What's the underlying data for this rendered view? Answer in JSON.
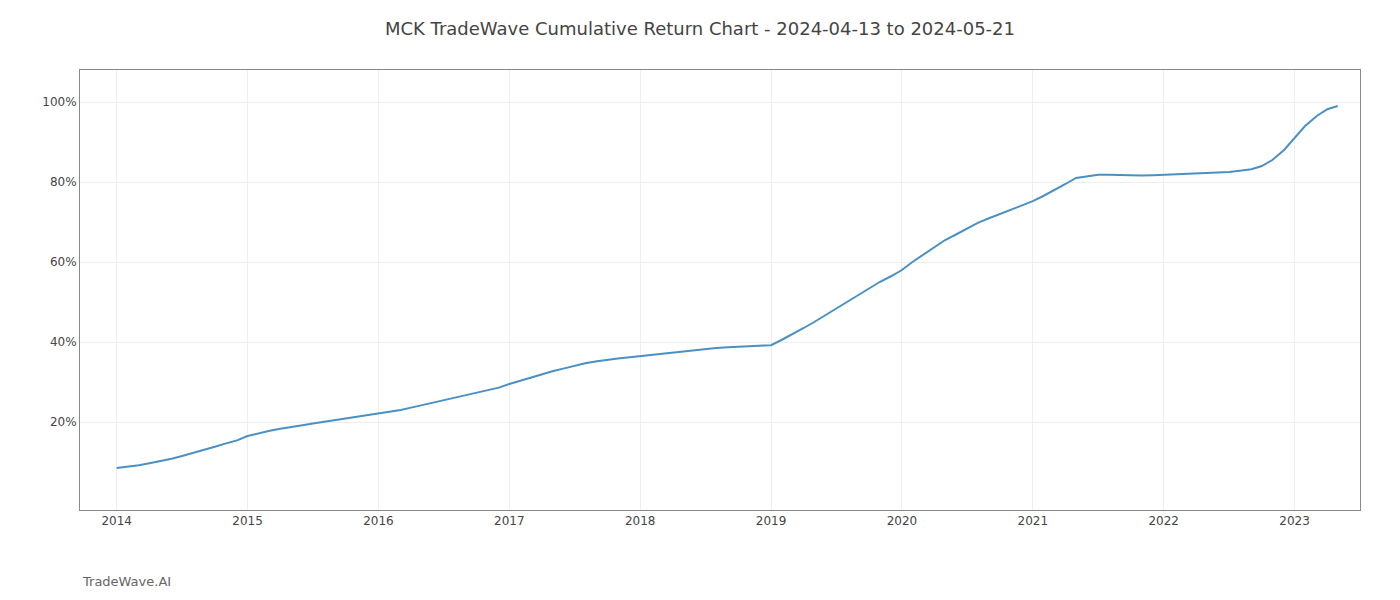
{
  "chart_data": {
    "type": "line",
    "title": "MCK TradeWave Cumulative Return Chart - 2024-04-13 to 2024-05-21",
    "annotations": [
      {
        "text": "TradeWave.AI"
      }
    ],
    "color": "#4A90C4",
    "grid": true,
    "x": [
      2014.0,
      2014.08,
      2014.17,
      2014.25,
      2014.33,
      2014.42,
      2014.5,
      2014.58,
      2014.67,
      2014.75,
      2014.83,
      2014.92,
      2015.0,
      2015.08,
      2015.17,
      2015.25,
      2015.33,
      2015.42,
      2015.5,
      2015.58,
      2015.67,
      2015.75,
      2015.83,
      2015.92,
      2016.0,
      2016.08,
      2016.17,
      2016.25,
      2016.33,
      2016.42,
      2016.5,
      2016.58,
      2016.67,
      2016.75,
      2016.83,
      2016.92,
      2017.0,
      2017.08,
      2017.17,
      2017.25,
      2017.33,
      2017.42,
      2017.5,
      2017.58,
      2017.67,
      2017.75,
      2017.83,
      2017.92,
      2018.0,
      2018.08,
      2018.17,
      2018.25,
      2018.33,
      2018.42,
      2018.5,
      2018.58,
      2018.67,
      2018.75,
      2018.83,
      2018.92,
      2019.0,
      2019.08,
      2019.17,
      2019.25,
      2019.33,
      2019.42,
      2019.5,
      2019.58,
      2019.67,
      2019.75,
      2019.83,
      2019.92,
      2020.0,
      2020.08,
      2020.17,
      2020.25,
      2020.33,
      2020.42,
      2020.5,
      2020.58,
      2020.67,
      2020.75,
      2020.83,
      2020.92,
      2021.0,
      2021.08,
      2021.17,
      2021.25,
      2021.33,
      2021.42,
      2021.5,
      2021.58,
      2021.67,
      2021.75,
      2021.83,
      2021.92,
      2022.0,
      2022.08,
      2022.17,
      2022.25,
      2022.33,
      2022.42,
      2022.5,
      2022.58,
      2022.67,
      2022.75,
      2022.83,
      2022.92,
      2023.0,
      2023.08,
      2023.17,
      2023.25,
      2023.33
    ],
    "values": [
      8.5,
      8.8,
      9.2,
      9.7,
      10.2,
      10.8,
      11.5,
      12.2,
      13.0,
      13.8,
      14.6,
      15.4,
      16.5,
      17.2,
      17.8,
      18.3,
      18.8,
      19.2,
      19.6,
      20.0,
      20.4,
      20.8,
      21.2,
      21.6,
      22.0,
      22.5,
      23.0,
      23.6,
      24.2,
      24.8,
      25.4,
      26.0,
      26.6,
      27.2,
      27.9,
      28.6,
      29.5,
      30.3,
      31.1,
      31.9,
      32.7,
      33.4,
      34.1,
      34.7,
      35.2,
      35.6,
      35.9,
      36.2,
      36.5,
      36.8,
      37.1,
      37.4,
      37.7,
      38.0,
      38.3,
      38.5,
      38.7,
      38.8,
      38.9,
      39.0,
      39.2,
      40.5,
      42.0,
      43.5,
      45.0,
      46.8,
      48.5,
      50.2,
      52.0,
      53.5,
      55.0,
      56.5,
      58.0,
      60.0,
      62.0,
      63.8,
      65.5,
      67.0,
      68.5,
      69.8,
      71.0,
      72.0,
      73.0,
      74.0,
      75.2,
      76.5,
      78.0,
      79.5,
      81.0,
      81.5,
      81.8,
      81.8,
      81.7,
      81.6,
      81.6,
      81.7,
      81.8,
      81.9,
      82.0,
      82.1,
      82.2,
      82.3,
      82.5,
      82.8,
      83.2,
      84.0,
      85.5,
      88.0,
      91.0,
      94.0,
      96.5,
      98.2,
      99.0
    ],
    "xlim": [
      2013.72,
      2023.5
    ],
    "xticks": [
      2014,
      2015,
      2016,
      2017,
      2018,
      2019,
      2020,
      2021,
      2022,
      2023
    ],
    "ylim": [
      -2,
      108
    ],
    "yticks": [
      {
        "value": 20,
        "label": "20%"
      },
      {
        "value": 40,
        "label": "40%"
      },
      {
        "value": 60,
        "label": "60%"
      },
      {
        "value": 80,
        "label": "80%"
      },
      {
        "value": 100,
        "label": "100%"
      }
    ]
  }
}
